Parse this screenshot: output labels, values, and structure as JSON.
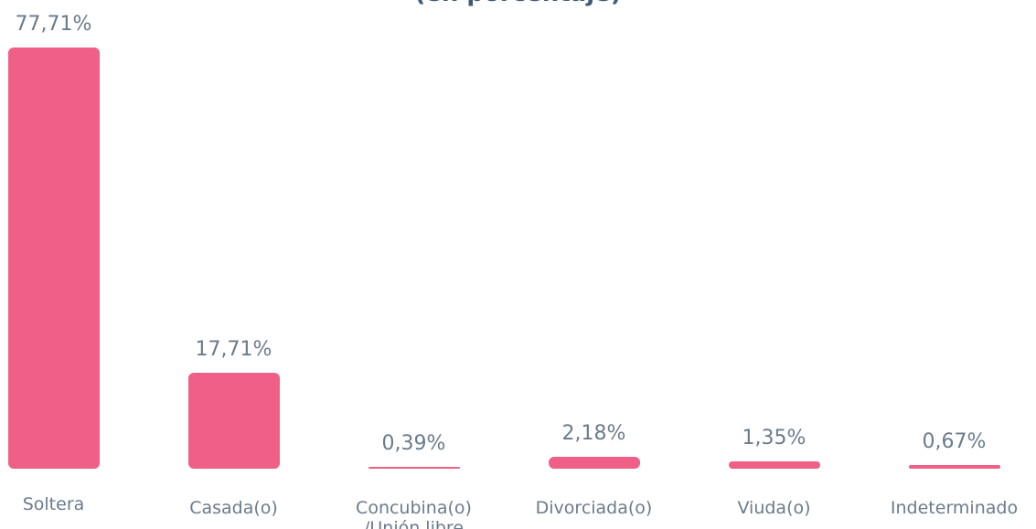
{
  "chart_data": {
    "type": "bar",
    "title": "(en porcentaje)",
    "categories": [
      "Soltera",
      "Casada(o)",
      "Concubina(o) /Unión libre",
      "Divorciada(o)",
      "Viuda(o)",
      "Indeterminado"
    ],
    "values": [
      77.71,
      17.71,
      0.39,
      2.18,
      1.35,
      0.67
    ],
    "value_labels": [
      "77,71%",
      "17,71%",
      "0,39%",
      "2,18%",
      "1,35%",
      "0,67%"
    ],
    "color": "#ef5f86"
  }
}
